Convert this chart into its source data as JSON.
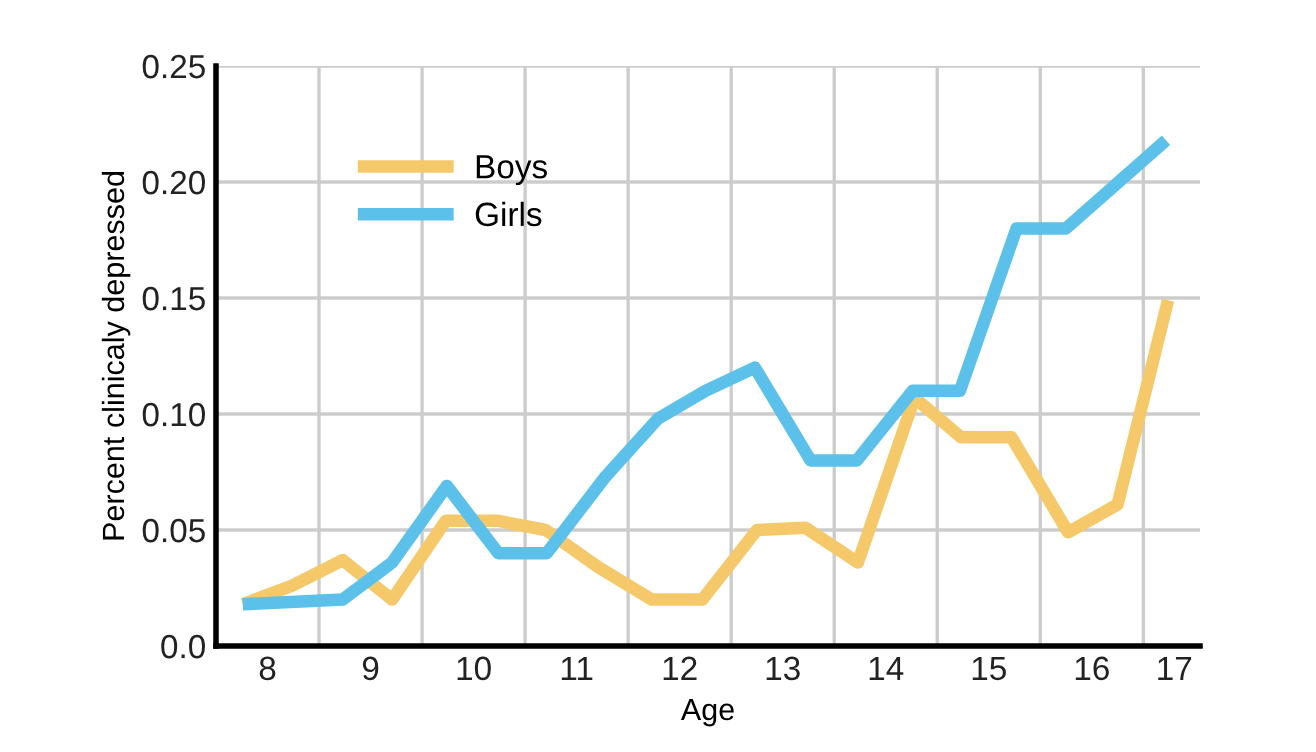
{
  "chart_data": {
    "type": "line",
    "xlabel": "Age",
    "ylabel": "Percent clinicaly depressed",
    "xlim": [
      7.5,
      17.05
    ],
    "ylim": [
      0,
      0.25
    ],
    "xticks": [
      8,
      9,
      10,
      11,
      12,
      13,
      14,
      15,
      16,
      {
        "value": 16.8,
        "label": "17"
      },
      {
        "value": 8.5,
        "label": null
      },
      {
        "value": 9.5,
        "label": null
      },
      {
        "value": 10.5,
        "label": null
      },
      {
        "value": 11.5,
        "label": null
      },
      {
        "value": 12.5,
        "label": null
      },
      {
        "value": 13.5,
        "label": null
      },
      {
        "value": 14.5,
        "label": null
      },
      {
        "value": 15.5,
        "label": null
      },
      {
        "value": 16.5,
        "label": null
      }
    ],
    "yticks": [
      {
        "value": 0,
        "label": "0.0"
      },
      0.05,
      {
        "value": 0.1,
        "label": "0.10"
      },
      0.15,
      {
        "value": 0.2,
        "label": "0.20"
      },
      0.25
    ],
    "grid": true,
    "legend": "top left",
    "marker": "none",
    "line_style": "solid",
    "series": [
      {
        "name": "Boys",
        "color": "#f5c96a",
        "x": [
          7.76,
          8.24,
          8.73,
          9.21,
          9.73,
          10.23,
          10.7,
          11.21,
          11.73,
          12.22,
          12.75,
          13.22,
          13.73,
          14.28,
          14.73,
          15.22,
          15.77,
          16.25,
          16.74
        ],
        "values": [
          0.018,
          0.026,
          0.037,
          0.02,
          0.054,
          0.054,
          0.05,
          0.034,
          0.02,
          0.02,
          0.05,
          0.051,
          0.036,
          0.107,
          0.09,
          0.09,
          0.049,
          0.061,
          0.149
        ]
      },
      {
        "name": "Girls",
        "color": "#5bc0ea",
        "x": [
          7.76,
          8.73,
          9.21,
          9.74,
          10.24,
          10.71,
          11.28,
          11.79,
          12.25,
          12.73,
          13.27,
          13.72,
          14.26,
          14.72,
          15.27,
          15.75,
          16.72
        ],
        "values": [
          0.018,
          0.02,
          0.036,
          0.069,
          0.04,
          0.04,
          0.073,
          0.098,
          0.11,
          0.12,
          0.08,
          0.08,
          0.11,
          0.11,
          0.18,
          0.18,
          0.218
        ]
      }
    ]
  }
}
